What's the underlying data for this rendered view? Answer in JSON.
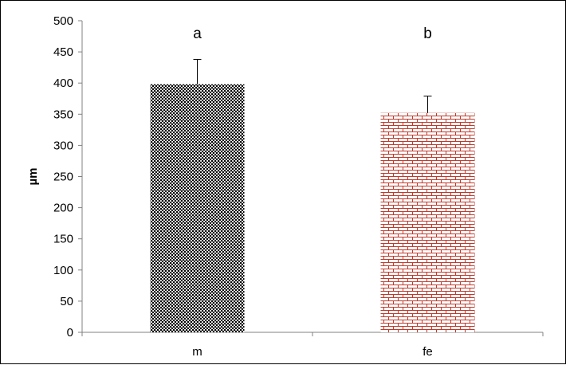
{
  "chart_data": {
    "type": "bar",
    "title": "",
    "xlabel": "",
    "ylabel": "µm",
    "ylim": [
      0,
      500
    ],
    "yticks": [
      0,
      50,
      100,
      150,
      200,
      250,
      300,
      350,
      400,
      450,
      500
    ],
    "categories": [
      "m",
      "fe"
    ],
    "values": [
      398,
      352
    ],
    "error": [
      40,
      27
    ],
    "annotations": [
      "a",
      "b"
    ],
    "grid": false,
    "legend": "none",
    "bar_colors": [
      "#000000",
      "#c0392b"
    ],
    "bar_patterns": [
      "dense-dots",
      "bricks"
    ]
  }
}
